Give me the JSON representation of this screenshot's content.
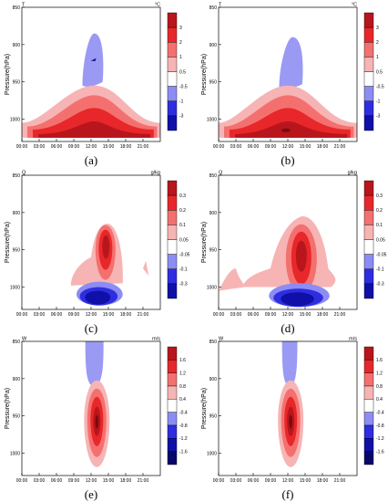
{
  "chart_data": [
    {
      "type": "contour",
      "panel_label": "(a)",
      "variable": "T",
      "unit": "°C",
      "ylabel": "Pressure(hPa)",
      "y_ticks": [
        850,
        900,
        950,
        1000
      ],
      "x_ticks": [
        "00:00",
        "03:00",
        "06:00",
        "09:00",
        "12:00",
        "15:00",
        "18:00",
        "21:00"
      ],
      "colorbar_levels": [
        "3",
        "2",
        "1",
        "0.5",
        "-0.5",
        "-1",
        "-3"
      ],
      "negative_regions": [
        {
          "t_min": 10.5,
          "t_max": 14.0,
          "p_top": 885,
          "p_bottom": 955,
          "peak": -1.0
        }
      ],
      "positive_regions": [
        {
          "t_min": 0,
          "t_max": 23.5,
          "p_top": 955,
          "p_bottom": 1025,
          "peak_time": 12.5,
          "peak_pressure": 1010,
          "peak": 2.0
        }
      ]
    },
    {
      "type": "contour",
      "panel_label": "(b)",
      "variable": "T",
      "unit": "°C",
      "ylabel": "Pressure(hPa)",
      "y_ticks": [
        850,
        900,
        950,
        1000
      ],
      "x_ticks": [
        "00:00",
        "03:00",
        "06:00",
        "09:00",
        "12:00",
        "15:00",
        "18:00",
        "21:00"
      ],
      "colorbar_levels": [
        "3",
        "2",
        "1",
        "0.5",
        "-0.5",
        "-1",
        "-3"
      ],
      "negative_regions": [
        {
          "t_min": 10.5,
          "t_max": 14.5,
          "p_top": 890,
          "p_bottom": 958,
          "peak": -0.5
        }
      ],
      "positive_regions": [
        {
          "t_min": 0,
          "t_max": 23.5,
          "p_top": 955,
          "p_bottom": 1025,
          "peak_time": 12.0,
          "peak_pressure": 1015,
          "peak": 3.0
        }
      ]
    },
    {
      "type": "contour",
      "panel_label": "(c)",
      "variable": "Q",
      "unit": "g/kg",
      "ylabel": "Pressure(hPa)",
      "y_ticks": [
        850,
        900,
        950,
        1000
      ],
      "x_ticks": [
        "00:00",
        "03:00",
        "06:00",
        "09:00",
        "12:00",
        "15:00",
        "18:00",
        "21:00"
      ],
      "colorbar_levels": [
        "0.3",
        "0.2",
        "0.1",
        "0.05",
        "-0.05",
        "-0.1",
        "-0.3"
      ],
      "positive_regions": [
        {
          "t_min": 8.5,
          "t_max": 17.5,
          "p_top": 915,
          "p_bottom": 995,
          "peak_time": 14.5,
          "peak_pressure": 945,
          "peak": 0.3
        }
      ],
      "negative_regions": [
        {
          "t_min": 9.5,
          "t_max": 17.5,
          "p_top": 990,
          "p_bottom": 1022,
          "peak_time": 13.0,
          "peak_pressure": 1010,
          "peak": -0.3
        }
      ]
    },
    {
      "type": "contour",
      "panel_label": "(d)",
      "variable": "Q",
      "unit": "g/kg",
      "ylabel": "Pressure(hPa)",
      "y_ticks": [
        850,
        900,
        950,
        1000
      ],
      "x_ticks": [
        "00:00",
        "03:00",
        "06:00",
        "09:00",
        "12:00",
        "15:00",
        "18:00",
        "21:00"
      ],
      "colorbar_levels": [
        "0.3",
        "0.2",
        "0.1",
        "0.05",
        "-0.05",
        "-0.1",
        "-0.3"
      ],
      "positive_regions": [
        {
          "t_min": 4.0,
          "t_max": 21.0,
          "p_top": 905,
          "p_bottom": 1000,
          "peak_time": 14.5,
          "peak_pressure": 955,
          "peak": 0.3
        }
      ],
      "negative_regions": [
        {
          "t_min": 8.5,
          "t_max": 19.0,
          "p_top": 990,
          "p_bottom": 1024,
          "peak_time": 13.5,
          "peak_pressure": 1012,
          "peak": -0.3
        }
      ]
    },
    {
      "type": "contour",
      "panel_label": "(e)",
      "variable": "W",
      "unit": "m/s",
      "ylabel": "Pressure(hPa)",
      "y_ticks": [
        850,
        900,
        950,
        1000
      ],
      "x_ticks": [
        "00:00",
        "03:00",
        "06:00",
        "09:00",
        "12:00",
        "15:00",
        "18:00",
        "21:00"
      ],
      "colorbar_levels": [
        "1.6",
        "1.2",
        "0.8",
        "0.4",
        "-0.4",
        "-0.8",
        "-1.2",
        "-1.6"
      ],
      "negative_regions": [
        {
          "t_min": 11.0,
          "t_max": 14.0,
          "p_top": 850,
          "p_bottom": 912,
          "peak": -0.4
        }
      ],
      "positive_regions": [
        {
          "t_min": 9.5,
          "t_max": 16.0,
          "p_top": 880,
          "p_bottom": 1022,
          "peak_time": 13.0,
          "peak_pressure": 955,
          "peak": 1.6
        }
      ]
    },
    {
      "type": "contour",
      "panel_label": "(f)",
      "variable": "W",
      "unit": "m/s",
      "ylabel": "Pressure(hPa)",
      "y_ticks": [
        850,
        900,
        950,
        1000
      ],
      "x_ticks": [
        "00:00",
        "03:00",
        "06:00",
        "09:00",
        "12:00",
        "15:00",
        "18:00",
        "21:00"
      ],
      "colorbar_levels": [
        "1.6",
        "1.2",
        "0.8",
        "0.4",
        "-0.4",
        "-0.8",
        "-1.2",
        "-1.6"
      ],
      "negative_regions": [
        {
          "t_min": 11.0,
          "t_max": 13.5,
          "p_top": 850,
          "p_bottom": 912,
          "peak": -0.4
        }
      ],
      "positive_regions": [
        {
          "t_min": 9.5,
          "t_max": 15.5,
          "p_top": 880,
          "p_bottom": 1022,
          "peak_time": 12.5,
          "peak_pressure": 955,
          "peak": 1.6
        }
      ]
    }
  ],
  "colors": {
    "pos": [
      "#f7b4b4",
      "#f4706f",
      "#e8272a",
      "#b8161c",
      "#7a0b10"
    ],
    "neg": [
      "#8c8cf4",
      "#2e2ee0",
      "#1010a8",
      "#08086a"
    ],
    "neg_light": "#9a9af4"
  }
}
